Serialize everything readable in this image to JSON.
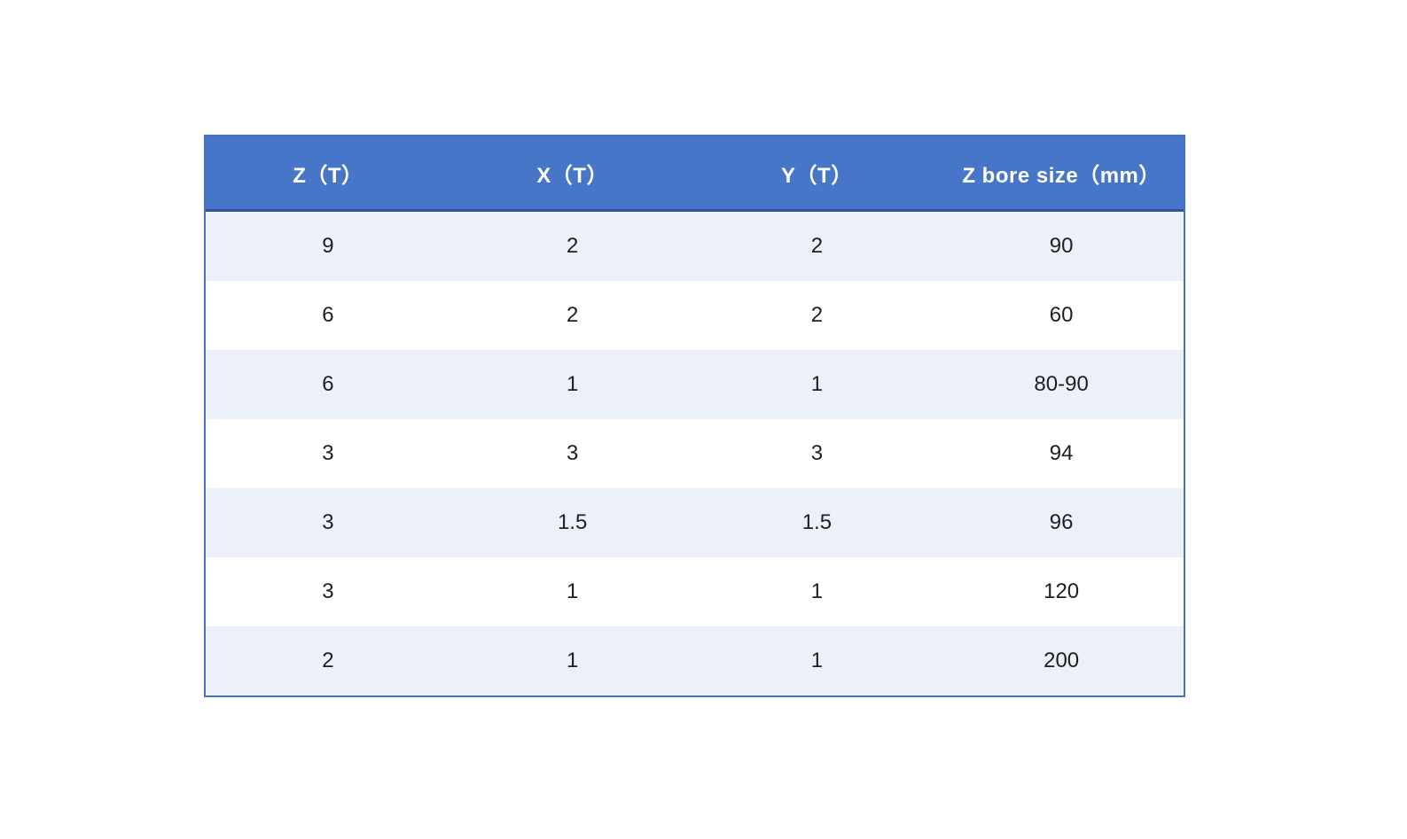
{
  "chart_data": {
    "type": "table",
    "columns": [
      "Z（T）",
      "X（T）",
      "Y（T）",
      "Z bore size（mm）"
    ],
    "rows": [
      [
        "9",
        "2",
        "2",
        "90"
      ],
      [
        "6",
        "2",
        "2",
        "60"
      ],
      [
        "6",
        "1",
        "1",
        "80-90"
      ],
      [
        "3",
        "3",
        "3",
        "94"
      ],
      [
        "3",
        "1.5",
        "1.5",
        "96"
      ],
      [
        "3",
        "1",
        "1",
        "120"
      ],
      [
        "2",
        "1",
        "1",
        "200"
      ]
    ],
    "layout_hints": {
      "header_alignment": "center",
      "cell_alignment": "center",
      "striped": true,
      "first_data_row_shaded": true
    }
  },
  "colors": {
    "header_background": "#4775C8",
    "header_text": "#FFFFFF",
    "header_separator": "#2F5597",
    "row_shaded_background": "#EBF0F9",
    "row_plain_background": "#FFFFFF",
    "outer_border": "#4472C4",
    "cell_text": "#1F1F1F",
    "page_background": "#FFFFFF"
  }
}
